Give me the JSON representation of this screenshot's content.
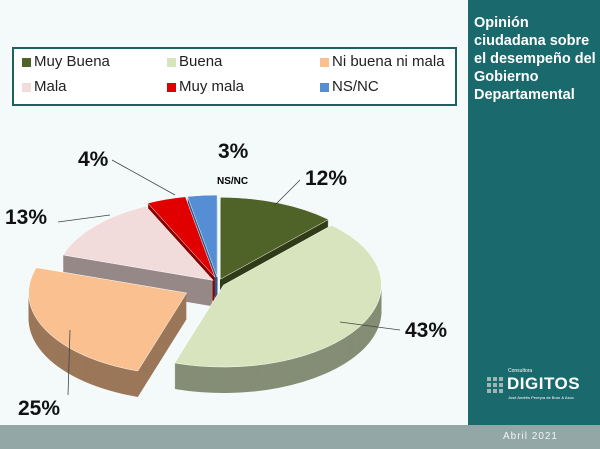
{
  "title": "Opinión ciudadana sobre el desempeño del Gobierno Departamental",
  "logo": {
    "small": "Consultora",
    "name": "DIGITOS",
    "sub": "José Andrés Pereyra de Brun & Asoc"
  },
  "date": "Abril 2021",
  "chart_data": {
    "type": "pie",
    "three_d": true,
    "legend_position": "top",
    "categories": [
      "Muy Buena",
      "Buena",
      "Ni buena ni mala",
      "Mala",
      "Muy mala",
      "NS/NC"
    ],
    "values": [
      12,
      43,
      25,
      13,
      4,
      3
    ],
    "labels": [
      "12%",
      "43%",
      "25%",
      "13%",
      "4%",
      "3%"
    ],
    "annotation": "NS/NC",
    "colors": [
      "#4f6228",
      "#d7e4bd",
      "#fac090",
      "#f2dcdb",
      "#e00000",
      "#558ed5"
    ]
  }
}
